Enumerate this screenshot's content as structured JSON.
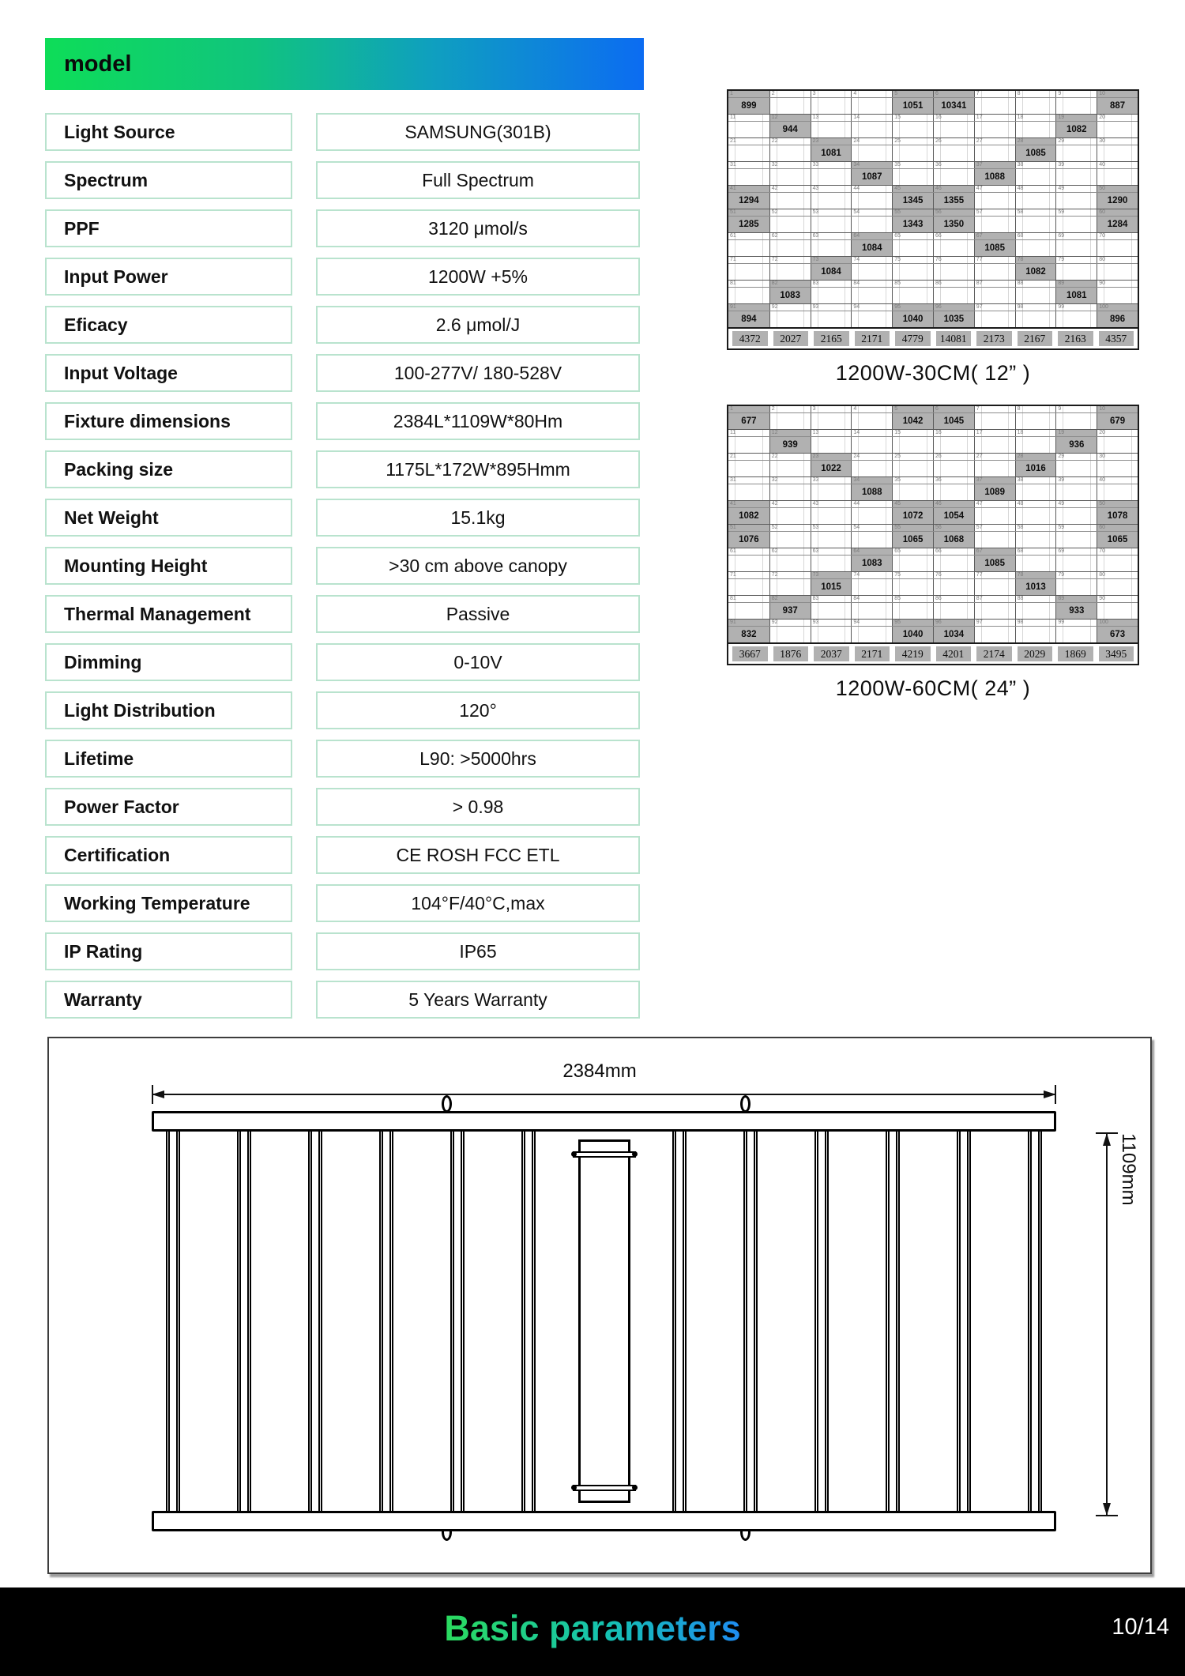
{
  "header": {
    "title": "model"
  },
  "spec_table": {
    "rows": [
      {
        "label": "Light Source",
        "value": "SAMSUNG(301B)"
      },
      {
        "label": "Spectrum",
        "value": "Full Spectrum"
      },
      {
        "label": "PPF",
        "value": "3120 μmol/s"
      },
      {
        "label": "Input Power",
        "value": "1200W +5%"
      },
      {
        "label": "Eficacy",
        "value": "2.6 μmol/J"
      },
      {
        "label": "Input Voltage",
        "value": "100-277V/ 180-528V"
      },
      {
        "label": "Fixture dimensions",
        "value": "2384L*1109W*80Hm"
      },
      {
        "label": "Packing size",
        "value": "1175L*172W*895Hmm"
      },
      {
        "label": "Net Weight",
        "value": "15.1kg"
      },
      {
        "label": "Mounting Height",
        "value": ">30 cm above canopy"
      },
      {
        "label": "Thermal Management",
        "value": "Passive"
      },
      {
        "label": "Dimming",
        "value": "0-10V"
      },
      {
        "label": "Light Distribution",
        "value": "120°"
      },
      {
        "label": "Lifetime",
        "value": "L90: >5000hrs"
      },
      {
        "label": "Power Factor",
        "value": "> 0.98"
      },
      {
        "label": "Certification",
        "value": "CE ROSH FCC ETL"
      },
      {
        "label": "Working Temperature",
        "value": "104°F/40°C,max"
      },
      {
        "label": "IP Rating",
        "value": "IP65"
      },
      {
        "label": "Warranty",
        "value": "5 Years Warranty"
      }
    ]
  },
  "ppfd_maps": [
    {
      "caption": "1200W-30CM( 12” )",
      "cols": 10,
      "rows": 10,
      "index_min": 1,
      "index_max": 100,
      "values": {
        "1": "899",
        "5": "1051",
        "6": "10341",
        "10": "887",
        "12": "944",
        "19": "1082",
        "23": "1081",
        "28": "1085",
        "34": "1087",
        "37": "1088",
        "41": "1294",
        "45": "1345",
        "46": "1355",
        "50": "1290",
        "51": "1285",
        "55": "1343",
        "56": "1350",
        "60": "1284",
        "64": "1084",
        "67": "1085",
        "73": "1084",
        "78": "1082",
        "82": "1083",
        "89": "1081",
        "91": "894",
        "95": "1040",
        "96": "1035",
        "100": "896"
      },
      "totals": [
        "4372",
        "2027",
        "2165",
        "2171",
        "4779",
        "14081",
        "2173",
        "2167",
        "2163",
        "4357"
      ]
    },
    {
      "caption": "1200W-60CM( 24” )",
      "cols": 10,
      "rows": 10,
      "index_min": 1,
      "index_max": 100,
      "values": {
        "1": "677",
        "5": "1042",
        "6": "1045",
        "10": "679",
        "12": "939",
        "19": "936",
        "23": "1022",
        "28": "1016",
        "34": "1088",
        "37": "1089",
        "41": "1082",
        "45": "1072",
        "46": "1054",
        "50": "1078",
        "51": "1076",
        "55": "1065",
        "56": "1068",
        "60": "1065",
        "64": "1083",
        "67": "1085",
        "73": "1015",
        "78": "1013",
        "82": "937",
        "89": "933",
        "91": "832",
        "95": "1040",
        "96": "1034",
        "100": "673"
      },
      "totals": [
        "3667",
        "1876",
        "2037",
        "2171",
        "4219",
        "4201",
        "2174",
        "2029",
        "1869",
        "3495"
      ]
    }
  ],
  "diagram": {
    "width_label": "2384mm",
    "height_label": "1109mm"
  },
  "footer": {
    "title": "Basic parameters",
    "page": "10/14"
  },
  "colors": {
    "bar_gradient_start": "#0edd58",
    "bar_gradient_end": "#0c6cf2",
    "table_border": "#b9e3ce",
    "grid_highlight": "#b1b1b1",
    "footer_bg": "#000000",
    "footer_title_start": "#2bdb5e",
    "footer_title_end": "#1e8cf2"
  }
}
